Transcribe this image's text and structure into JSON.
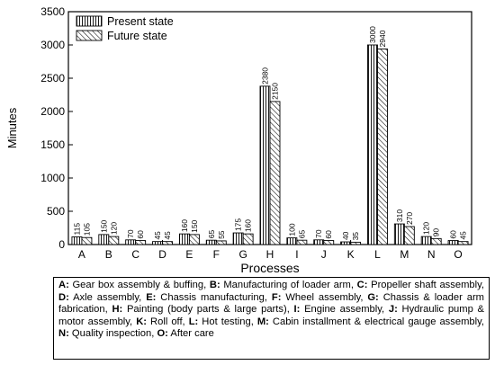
{
  "chart_data": {
    "type": "bar",
    "xlabel": "Processes",
    "ylabel": "Minutes",
    "ylim": [
      0,
      3500
    ],
    "yticks": [
      "0",
      "500",
      "1000",
      "1500",
      "2000",
      "2500",
      "3000",
      "3500"
    ],
    "grid": false,
    "legend_position": "top-left",
    "categories": [
      "A",
      "B",
      "C",
      "D",
      "E",
      "F",
      "G",
      "H",
      "I",
      "J",
      "K",
      "L",
      "M",
      "N",
      "O"
    ],
    "series": [
      {
        "name": "Present state",
        "pattern": "vertical-hatch",
        "values": [
          115,
          150,
          70,
          45,
          160,
          65,
          175,
          2380,
          100,
          70,
          40,
          3000,
          310,
          120,
          60
        ],
        "labels": [
          "115",
          "150",
          "70",
          "45",
          "160",
          "65",
          "175",
          "2380",
          "100",
          "70",
          "40",
          "3000",
          "310",
          "120",
          "60"
        ]
      },
      {
        "name": "Future state",
        "pattern": "diagonal-hatch",
        "values": [
          105,
          120,
          60,
          45,
          150,
          55,
          160,
          2150,
          65,
          60,
          35,
          2940,
          270,
          90,
          45
        ],
        "labels": [
          "105",
          "120",
          "60",
          "45",
          "150",
          "55",
          "160",
          "2150",
          "65",
          "60",
          "35",
          "2940",
          "270",
          "90",
          "45"
        ]
      }
    ]
  },
  "caption": [
    {
      "key": "A:",
      "text": " Gear box assembly & buffing, "
    },
    {
      "key": "B:",
      "text": " Manufacturing of loader arm, "
    },
    {
      "key": "C:",
      "text": " Propeller shaft assembly, "
    },
    {
      "key": "D:",
      "text": " Axle assembly, "
    },
    {
      "key": "E:",
      "text": " Chassis manufacturing, "
    },
    {
      "key": "F:",
      "text": " Wheel assembly, "
    },
    {
      "key": "G:",
      "text": " Chassis & loader arm fabrication, "
    },
    {
      "key": "H:",
      "text": " Painting (body parts & large parts), "
    },
    {
      "key": "I:",
      "text": " Engine assembly, "
    },
    {
      "key": "J:",
      "text": " Hydraulic pump & motor assembly, "
    },
    {
      "key": "K:",
      "text": " Roll off, "
    },
    {
      "key": "L:",
      "text": " Hot testing, "
    },
    {
      "key": "M:",
      "text": " Cabin installment & electrical gauge assembly, "
    },
    {
      "key": "N:",
      "text": " Quality inspection, "
    },
    {
      "key": "O:",
      "text": " After care"
    }
  ]
}
